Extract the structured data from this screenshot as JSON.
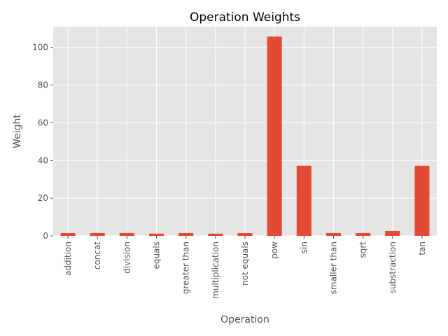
{
  "chart_data": {
    "type": "bar",
    "title": "Operation Weights",
    "xlabel": "Operation",
    "ylabel": "Weight",
    "categories": [
      "addition",
      "concat",
      "division",
      "equals",
      "greater than",
      "multiplication",
      "not equals",
      "pow",
      "sin",
      "smaller than",
      "sqrt",
      "substraction",
      "tan"
    ],
    "values": [
      1.5,
      1.5,
      1.5,
      1.2,
      1.5,
      1.2,
      1.5,
      105.7,
      37.2,
      1.5,
      1.5,
      2.6,
      37.2
    ],
    "ylim": [
      0,
      111
    ],
    "yticks": [
      0,
      20,
      40,
      60,
      80,
      100
    ],
    "grid": true,
    "legend": "none",
    "colors": {
      "bar": "#E24A33",
      "plot_background": "#E5E5E5",
      "grid": "#FFFFFF"
    }
  }
}
